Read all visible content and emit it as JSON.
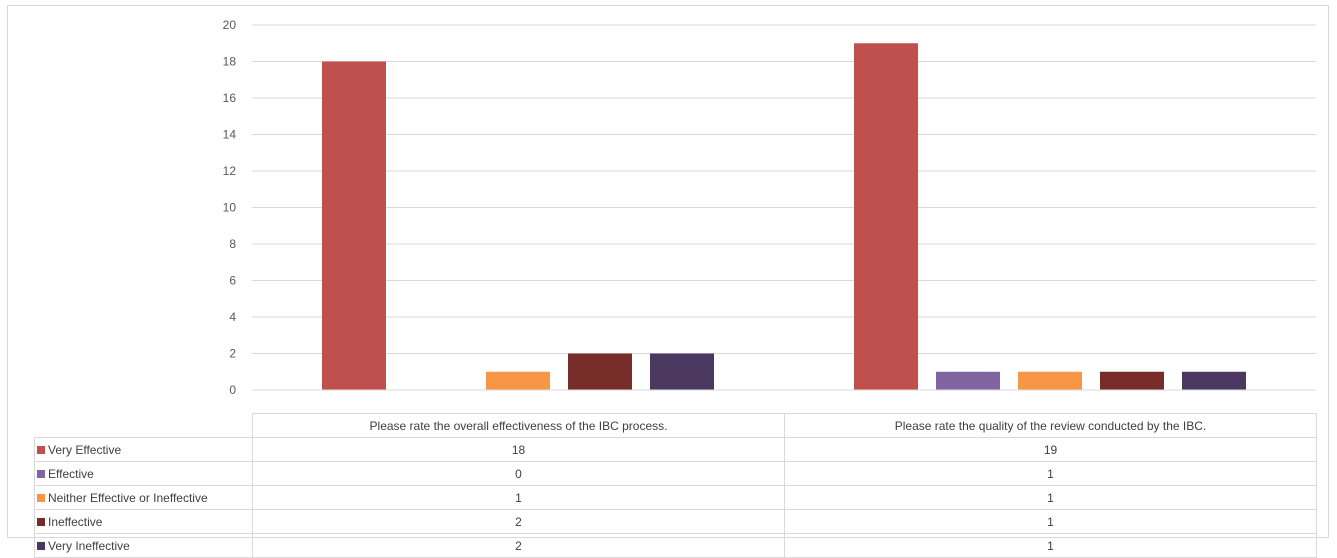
{
  "chart_data": {
    "type": "bar",
    "categories": [
      "Please rate the overall effectiveness of the IBC process.",
      "Please rate the quality of the review conducted by the IBC."
    ],
    "series": [
      {
        "name": "Very Effective",
        "color": "#c0504d",
        "values": [
          18,
          19
        ]
      },
      {
        "name": "Effective",
        "color": "#8064a2",
        "values": [
          0,
          1
        ]
      },
      {
        "name": "Neither Effective or Ineffective",
        "color": "#f79646",
        "values": [
          1,
          1
        ]
      },
      {
        "name": "Ineffective",
        "color": "#772c2a",
        "values": [
          2,
          1
        ]
      },
      {
        "name": "Very Ineffective",
        "color": "#4a3860",
        "values": [
          2,
          1
        ]
      }
    ],
    "ylim": [
      0,
      20
    ],
    "yticks": [
      "0",
      "2",
      "4",
      "6",
      "8",
      "10",
      "12",
      "14",
      "16",
      "18",
      "20"
    ],
    "grid": true,
    "legend": "data-table-below"
  }
}
